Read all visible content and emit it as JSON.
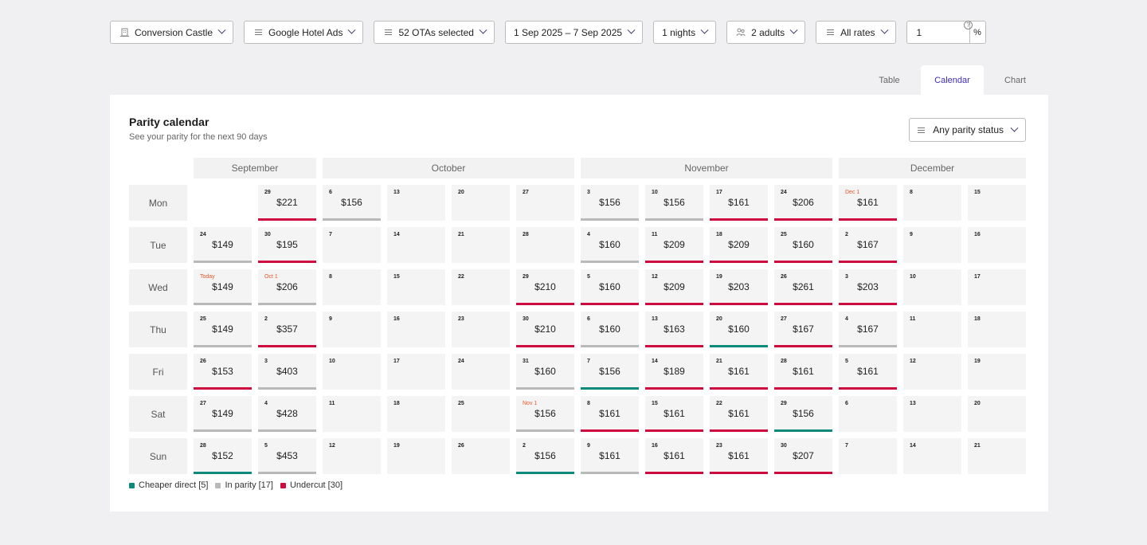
{
  "filters": {
    "property": "Conversion Castle",
    "channel": "Google Hotel Ads",
    "otas": "52 OTAs selected",
    "dates": "1 Sep 2025 – 7 Sep 2025",
    "nights": "1 nights",
    "guests": "2 adults",
    "rates": "All rates",
    "percent_value": "1",
    "percent_unit": "%",
    "help_glyph": "?"
  },
  "tabs": [
    {
      "label": "Table",
      "active": false
    },
    {
      "label": "Calendar",
      "active": true
    },
    {
      "label": "Chart",
      "active": false
    }
  ],
  "panel": {
    "title": "Parity calendar",
    "subtitle": "See your parity for the next 90 days",
    "status_filter": "Any parity status"
  },
  "colors": {
    "cheaper": "#0e8a7d",
    "parity": "#b9b9b9",
    "undercut": "#cf0a3f",
    "highlight": "#e8562a",
    "accent": "#3d2db5"
  },
  "weekdays": [
    "Mon",
    "Tue",
    "Wed",
    "Thu",
    "Fri",
    "Sat",
    "Sun"
  ],
  "months": [
    {
      "label": "September",
      "first_col": 0,
      "cols": 2
    },
    {
      "label": "October",
      "first_col": 2,
      "cols": 4
    },
    {
      "label": "November",
      "first_col": 6,
      "cols": 4
    },
    {
      "label": "December",
      "first_col": 10,
      "cols": 3
    }
  ],
  "calendar": [
    [
      null,
      {
        "day": "24",
        "price": "$149",
        "status": "parity"
      },
      {
        "day": "Today",
        "hi": true,
        "price": "$149",
        "status": "parity"
      },
      {
        "day": "25",
        "price": "$149",
        "status": "parity"
      },
      {
        "day": "26",
        "price": "$153",
        "status": "undercut"
      },
      {
        "day": "27",
        "price": "$149",
        "status": "parity"
      },
      {
        "day": "28",
        "price": "$152",
        "status": "cheaper"
      }
    ],
    [
      {
        "day": "29",
        "price": "$221",
        "status": "undercut"
      },
      {
        "day": "30",
        "price": "$195",
        "status": "undercut"
      },
      {
        "day": "Oct 1",
        "hi": true,
        "price": "$206",
        "status": "parity"
      },
      {
        "day": "2",
        "price": "$357",
        "status": "undercut"
      },
      {
        "day": "3",
        "price": "$403",
        "status": "parity"
      },
      {
        "day": "4",
        "price": "$428",
        "status": "parity"
      },
      {
        "day": "5",
        "price": "$453",
        "status": "parity"
      }
    ],
    [
      {
        "day": "6",
        "price": "$156",
        "status": "parity"
      },
      {
        "day": "7"
      },
      {
        "day": "8"
      },
      {
        "day": "9"
      },
      {
        "day": "10"
      },
      {
        "day": "11"
      },
      {
        "day": "12"
      }
    ],
    [
      {
        "day": "13"
      },
      {
        "day": "14"
      },
      {
        "day": "15"
      },
      {
        "day": "16"
      },
      {
        "day": "17"
      },
      {
        "day": "18"
      },
      {
        "day": "19"
      }
    ],
    [
      {
        "day": "20"
      },
      {
        "day": "21"
      },
      {
        "day": "22"
      },
      {
        "day": "23"
      },
      {
        "day": "24"
      },
      {
        "day": "25"
      },
      {
        "day": "26"
      }
    ],
    [
      {
        "day": "27"
      },
      {
        "day": "28"
      },
      {
        "day": "29",
        "price": "$210",
        "status": "undercut"
      },
      {
        "day": "30",
        "price": "$210",
        "status": "undercut"
      },
      {
        "day": "31",
        "price": "$160",
        "status": "parity"
      },
      {
        "day": "Nov 1",
        "hi": true,
        "price": "$156",
        "status": "parity"
      },
      {
        "day": "2",
        "price": "$156",
        "status": "cheaper"
      }
    ],
    [
      {
        "day": "3",
        "price": "$156",
        "status": "parity"
      },
      {
        "day": "4",
        "price": "$160",
        "status": "parity"
      },
      {
        "day": "5",
        "price": "$160",
        "status": "undercut"
      },
      {
        "day": "6",
        "price": "$160",
        "status": "parity"
      },
      {
        "day": "7",
        "price": "$156",
        "status": "cheaper"
      },
      {
        "day": "8",
        "price": "$161",
        "status": "undercut"
      },
      {
        "day": "9",
        "price": "$161",
        "status": "parity"
      }
    ],
    [
      {
        "day": "10",
        "price": "$156",
        "status": "parity"
      },
      {
        "day": "11",
        "price": "$209",
        "status": "undercut"
      },
      {
        "day": "12",
        "price": "$209",
        "status": "undercut"
      },
      {
        "day": "13",
        "price": "$163",
        "status": "undercut"
      },
      {
        "day": "14",
        "price": "$189",
        "status": "undercut"
      },
      {
        "day": "15",
        "price": "$161",
        "status": "undercut"
      },
      {
        "day": "16",
        "price": "$161",
        "status": "undercut"
      }
    ],
    [
      {
        "day": "17",
        "price": "$161",
        "status": "undercut"
      },
      {
        "day": "18",
        "price": "$209",
        "status": "undercut"
      },
      {
        "day": "19",
        "price": "$203",
        "status": "undercut"
      },
      {
        "day": "20",
        "price": "$160",
        "status": "cheaper"
      },
      {
        "day": "21",
        "price": "$161",
        "status": "undercut"
      },
      {
        "day": "22",
        "price": "$161",
        "status": "undercut"
      },
      {
        "day": "23",
        "price": "$161",
        "status": "undercut"
      }
    ],
    [
      {
        "day": "24",
        "price": "$206",
        "status": "undercut"
      },
      {
        "day": "25",
        "price": "$160",
        "status": "undercut"
      },
      {
        "day": "26",
        "price": "$261",
        "status": "undercut"
      },
      {
        "day": "27",
        "price": "$167",
        "status": "undercut"
      },
      {
        "day": "28",
        "price": "$161",
        "status": "undercut"
      },
      {
        "day": "29",
        "price": "$156",
        "status": "cheaper"
      },
      {
        "day": "30",
        "price": "$207",
        "status": "undercut"
      }
    ],
    [
      {
        "day": "Dec 1",
        "hi": true,
        "price": "$161",
        "status": "undercut"
      },
      {
        "day": "2",
        "price": "$167",
        "status": "undercut"
      },
      {
        "day": "3",
        "price": "$203",
        "status": "undercut"
      },
      {
        "day": "4",
        "price": "$167",
        "status": "parity"
      },
      {
        "day": "5",
        "price": "$161",
        "status": "undercut"
      },
      {
        "day": "6"
      },
      {
        "day": "7"
      }
    ],
    [
      {
        "day": "8"
      },
      {
        "day": "9"
      },
      {
        "day": "10"
      },
      {
        "day": "11"
      },
      {
        "day": "12"
      },
      {
        "day": "13"
      },
      {
        "day": "14"
      }
    ],
    [
      {
        "day": "15"
      },
      {
        "day": "16"
      },
      {
        "day": "17"
      },
      {
        "day": "18"
      },
      {
        "day": "19"
      },
      {
        "day": "20"
      },
      {
        "day": "21"
      }
    ]
  ],
  "legend": [
    {
      "label": "Cheaper direct [5]",
      "status": "cheaper"
    },
    {
      "label": "In parity [17]",
      "status": "parity"
    },
    {
      "label": "Undercut [30]",
      "status": "undercut"
    }
  ]
}
